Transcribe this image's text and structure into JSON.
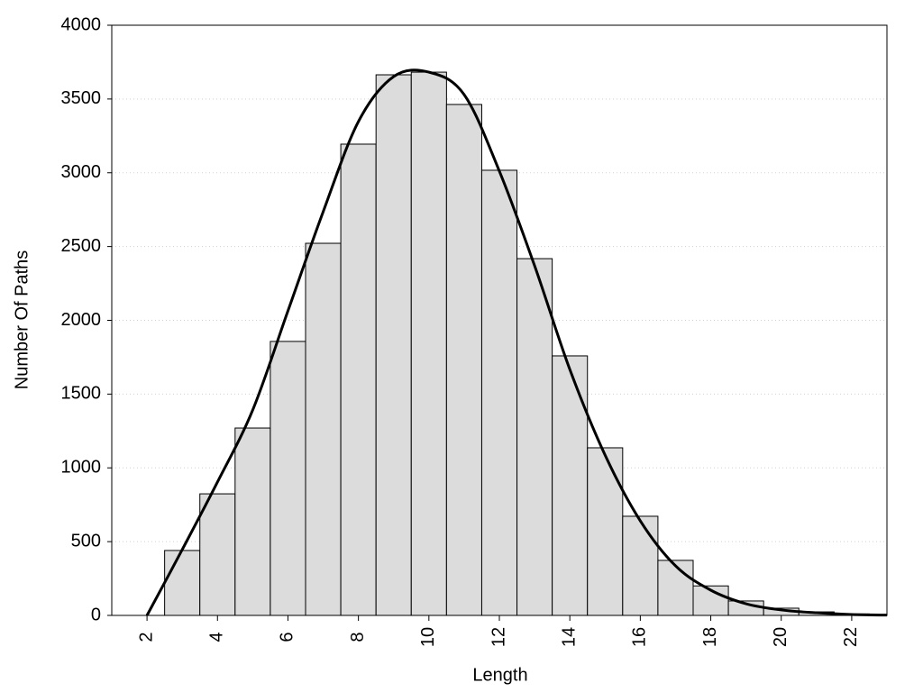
{
  "chart_data": {
    "type": "histogram",
    "xlabel": "Length",
    "ylabel": "Number Of Paths",
    "bins": [
      2.5,
      3.5,
      4.5,
      5.5,
      6.5,
      7.5,
      8.5,
      9.5,
      10.5,
      11.5,
      12.5,
      13.5,
      14.5,
      15.5,
      16.5,
      17.5,
      18.5,
      19.5,
      20.5,
      21.5,
      22.5
    ],
    "values": [
      440,
      824,
      1270,
      1857,
      2522,
      3194,
      3664,
      3682,
      3463,
      3017,
      2418,
      1759,
      1136,
      672,
      373,
      200,
      98,
      49,
      24,
      10
    ],
    "color": "#dcdcdc",
    "line": {
      "x": [
        2,
        3,
        4,
        5,
        6,
        7,
        8,
        9,
        10,
        11,
        12,
        13,
        14,
        15,
        16,
        17,
        18,
        19,
        20,
        21,
        22,
        23
      ],
      "values": [
        0,
        446,
        904,
        1392,
        2064,
        2736,
        3347,
        3652,
        3682,
        3530,
        3011,
        2370,
        1667,
        1087,
        641,
        336,
        171,
        79,
        37,
        18,
        6,
        2
      ],
      "color": "#000000"
    },
    "xlim": [
      1,
      23
    ],
    "ylim": [
      0,
      4000
    ],
    "xticks": [
      2,
      4,
      6,
      8,
      10,
      12,
      14,
      16,
      18,
      20,
      22
    ],
    "yticks": [
      0,
      500,
      1000,
      1500,
      2000,
      2500,
      3000,
      3500,
      4000
    ],
    "grid": true
  }
}
